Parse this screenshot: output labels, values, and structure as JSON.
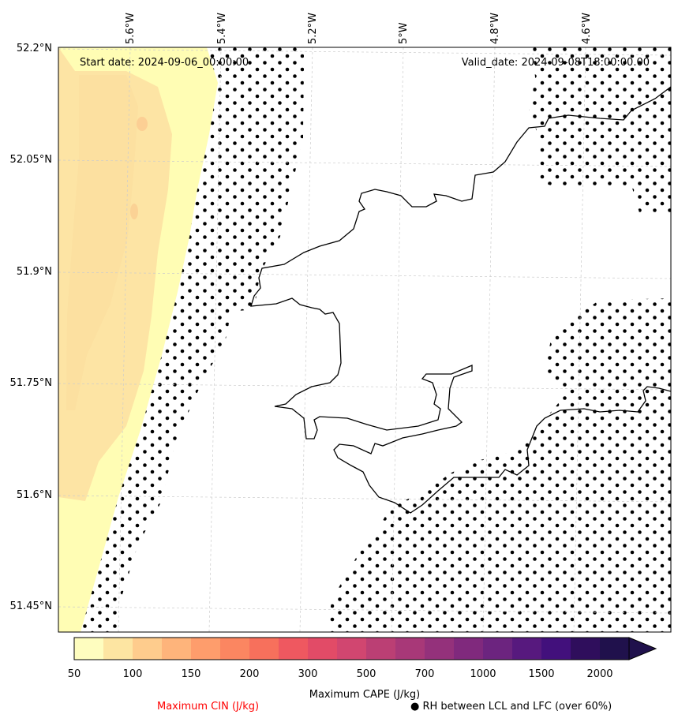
{
  "map": {
    "start_date": "Start date: 2024-09-06_00:00:00",
    "valid_date": "Valid_date: 2024-09-08T18:00:00.00",
    "lon_labels": [
      "5.6°W",
      "5.4°W",
      "5.2°W",
      "5°W",
      "4.8°W",
      "4.6°W"
    ],
    "lat_labels": [
      "52.2°N",
      "52.05°N",
      "51.9°N",
      "51.75°N",
      "51.6°N",
      "51.45°N"
    ],
    "colors": {
      "cin_light": "#fffdb4",
      "cin_mid": "#fde4a4",
      "cin_dark": "#fccf94",
      "coastline": "#000000",
      "stipple": "#000000",
      "gridline": "#cccccc"
    }
  },
  "colorbar": {
    "title": "Maximum CAPE (J/kg)",
    "tick_labels": [
      "50",
      "100",
      "150",
      "200",
      "300",
      "500",
      "700",
      "1000",
      "1500",
      "2000"
    ],
    "colors": [
      "#fefdbf",
      "#fde5a2",
      "#fecc8d",
      "#feb47b",
      "#fe9d6c",
      "#fb8661",
      "#f7705c",
      "#ef5860",
      "#e24b67",
      "#d14670",
      "#bb3f74",
      "#a83878",
      "#94317b",
      "#80297d",
      "#6c247f",
      "#57197e",
      "#42107c",
      "#2f0e5c",
      "#20114c"
    ],
    "extend": "max"
  },
  "legend": {
    "cin_label": "Maximum CIN (J/kg)",
    "cin_color": "#ff0000",
    "rh_symbol": "●",
    "rh_label": "RH between LCL and LFC (over 60%)"
  }
}
